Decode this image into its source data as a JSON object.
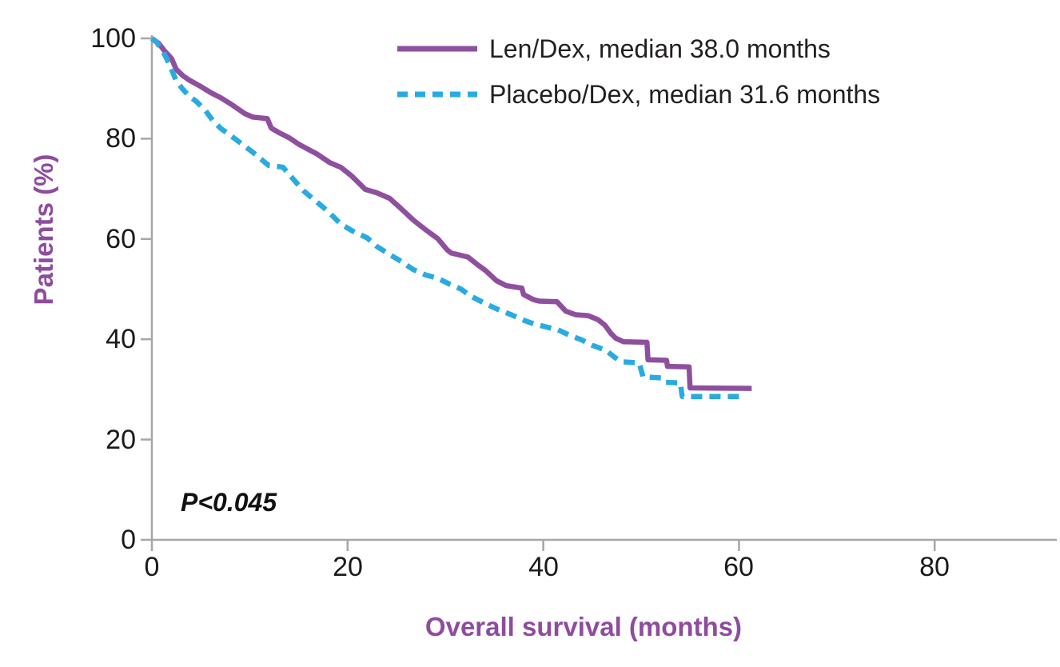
{
  "chart_data": {
    "type": "line",
    "subtype": "kaplan-meier-survival",
    "title": "",
    "xlabel": "Overall survival (months)",
    "ylabel": "Patients (%)",
    "xlim": [
      0,
      88
    ],
    "ylim": [
      0,
      100
    ],
    "x_ticks": [
      0,
      20,
      40,
      60,
      80
    ],
    "y_ticks": [
      0,
      20,
      40,
      60,
      80,
      100
    ],
    "grid": false,
    "legend_position": "top-center-inside",
    "annotation": "P<0.045",
    "series": [
      {
        "id": "len-dex",
        "name": "Len/Dex, median 38.0 months",
        "median_months": 38.0,
        "color": "#8f4f9f",
        "style": "solid",
        "points": [
          [
            0,
            100
          ],
          [
            0.7,
            99
          ],
          [
            1.3,
            97.5
          ],
          [
            2,
            96
          ],
          [
            2.5,
            93.8
          ],
          [
            3.2,
            92.5
          ],
          [
            3.8,
            91.7
          ],
          [
            5,
            90.4
          ],
          [
            6,
            89.2
          ],
          [
            7,
            88.2
          ],
          [
            8,
            87
          ],
          [
            9.5,
            85
          ],
          [
            10.3,
            84.3
          ],
          [
            11.8,
            84
          ],
          [
            12.2,
            82.1
          ],
          [
            13,
            81.2
          ],
          [
            14,
            80.2
          ],
          [
            15,
            78.9
          ],
          [
            16.9,
            76.9
          ],
          [
            18.2,
            75.2
          ],
          [
            19.3,
            74.3
          ],
          [
            20.4,
            72.6
          ],
          [
            21.8,
            69.9
          ],
          [
            23,
            69.2
          ],
          [
            24.3,
            68.1
          ],
          [
            25.5,
            66
          ],
          [
            26.7,
            63.8
          ],
          [
            28,
            61.8
          ],
          [
            29.2,
            60.1
          ],
          [
            30.2,
            57.8
          ],
          [
            30.6,
            57.2
          ],
          [
            32.3,
            56.4
          ],
          [
            33.2,
            55
          ],
          [
            34.1,
            53.7
          ],
          [
            35.2,
            51.7
          ],
          [
            36.2,
            50.7
          ],
          [
            37.8,
            50.2
          ],
          [
            38,
            48.9
          ],
          [
            39,
            47.9
          ],
          [
            39.6,
            47.6
          ],
          [
            41.4,
            47.5
          ],
          [
            42.3,
            45.6
          ],
          [
            43.3,
            44.9
          ],
          [
            44.6,
            44.7
          ],
          [
            45.6,
            43.9
          ],
          [
            46.3,
            42.8
          ],
          [
            46.9,
            41.2
          ],
          [
            47.4,
            40.2
          ],
          [
            48.2,
            39.5
          ],
          [
            50.6,
            39.4
          ],
          [
            50.7,
            35.9
          ],
          [
            52.6,
            35.8
          ],
          [
            52.7,
            34.6
          ],
          [
            54.9,
            34.5
          ],
          [
            55,
            30.3
          ],
          [
            61.3,
            30.2
          ]
        ]
      },
      {
        "id": "placebo-dex",
        "name": "Placebo/Dex, median 31.6 months",
        "median_months": 31.6,
        "color": "#29abe2",
        "style": "dashed",
        "points": [
          [
            0,
            100
          ],
          [
            0.5,
            99.2
          ],
          [
            1,
            97.8
          ],
          [
            1.5,
            96
          ],
          [
            2,
            93.8
          ],
          [
            2.5,
            91.5
          ],
          [
            3.1,
            90
          ],
          [
            3.8,
            88.5
          ],
          [
            4.5,
            87.5
          ],
          [
            5.4,
            85.8
          ],
          [
            6.2,
            83.7
          ],
          [
            7,
            82.1
          ],
          [
            8.2,
            80.4
          ],
          [
            9.5,
            78.5
          ],
          [
            10.5,
            77
          ],
          [
            11.9,
            74.7
          ],
          [
            13.4,
            74.3
          ],
          [
            14.5,
            71.8
          ],
          [
            15.5,
            69.6
          ],
          [
            16.9,
            67.3
          ],
          [
            18,
            65.5
          ],
          [
            19.3,
            63
          ],
          [
            20.5,
            61.6
          ],
          [
            22,
            60.2
          ],
          [
            23,
            58.5
          ],
          [
            24.3,
            56.9
          ],
          [
            25.5,
            55.5
          ],
          [
            26.7,
            53.9
          ],
          [
            28,
            52.8
          ],
          [
            29.2,
            52.2
          ],
          [
            30.4,
            51
          ],
          [
            31.6,
            50
          ],
          [
            32.5,
            48.7
          ],
          [
            34.1,
            47.1
          ],
          [
            35.3,
            46
          ],
          [
            36.6,
            45
          ],
          [
            38,
            43.8
          ],
          [
            39,
            43.1
          ],
          [
            40.2,
            42.5
          ],
          [
            41.5,
            41.9
          ],
          [
            42.7,
            40.8
          ],
          [
            43.9,
            39.9
          ],
          [
            45,
            38.8
          ],
          [
            46.4,
            37.8
          ],
          [
            47.3,
            36.4
          ],
          [
            48,
            35.5
          ],
          [
            49.8,
            35.3
          ],
          [
            50.2,
            32.5
          ],
          [
            52.1,
            32.3
          ],
          [
            52.5,
            31.4
          ],
          [
            54,
            31.3
          ],
          [
            54.2,
            28.6
          ],
          [
            60.7,
            28.6
          ]
        ]
      }
    ]
  },
  "colors": {
    "axis_line": "#a6a6a6",
    "tick_text": "#1a1a1a",
    "axis_title_text": "#8e4c9e",
    "legend_text": "#231f20",
    "annotation_text": "#111111"
  }
}
